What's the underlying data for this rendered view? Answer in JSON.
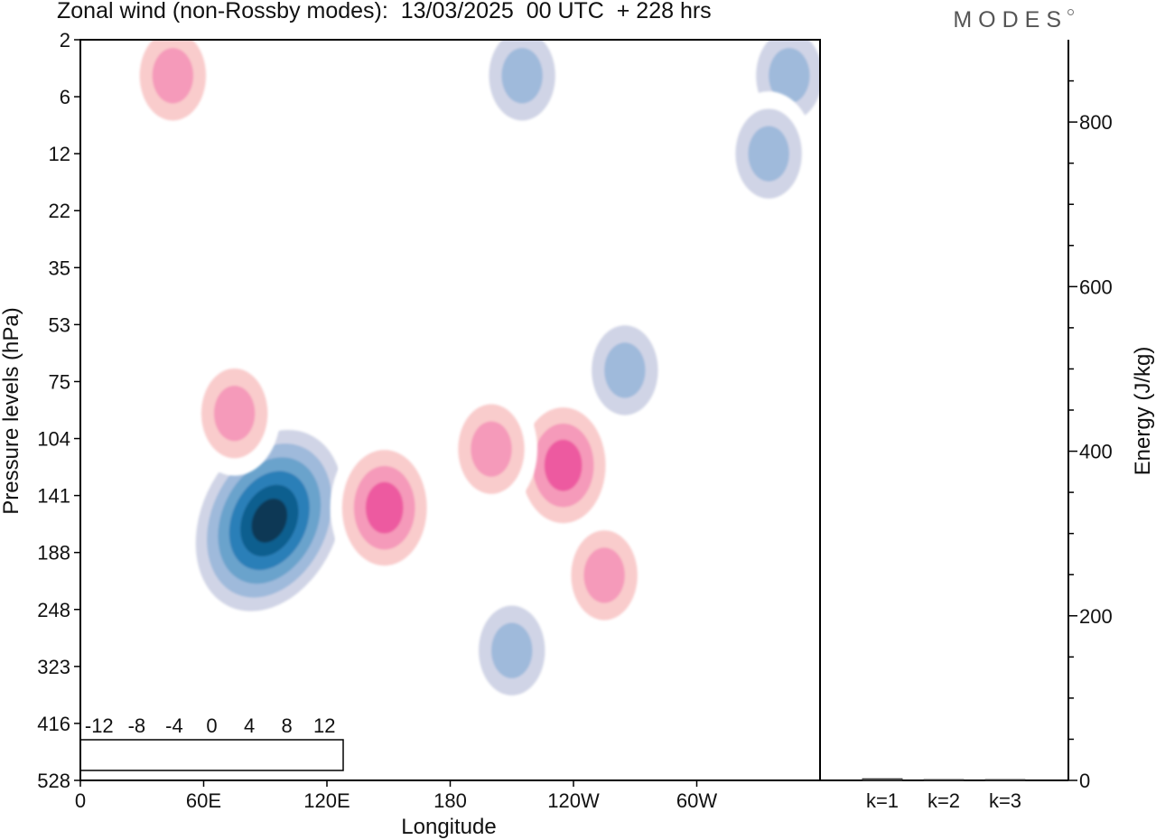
{
  "header": {
    "title": "Zonal wind (non-Rossby modes):  13/03/2025  00 UTC  + 228 hrs",
    "brand": "MODES"
  },
  "chart_data": [
    {
      "type": "heatmap",
      "xlabel": "Longitude",
      "ylabel": "Pressure levels (hPa)",
      "x_tick_labels": [
        "0",
        "60E",
        "120E",
        "180",
        "120W",
        "60W"
      ],
      "x_tick_degrees": [
        0,
        60,
        120,
        180,
        240,
        300
      ],
      "x_range_degrees": [
        0,
        360
      ],
      "y_tick_labels": [
        "2",
        "6",
        "12",
        "22",
        "35",
        "53",
        "75",
        "104",
        "141",
        "188",
        "248",
        "323",
        "416",
        "528"
      ],
      "colorbar": {
        "tick_labels": [
          "-12",
          "-8",
          "-4",
          "0",
          "4",
          "8",
          "12"
        ],
        "levels": [
          -14,
          -12,
          -10,
          -8,
          -6,
          -4,
          -2,
          0,
          2,
          4,
          6,
          8,
          10,
          12,
          14
        ],
        "colors": [
          "#0b3954",
          "#0b5f8f",
          "#2b7fb8",
          "#6ba3cc",
          "#9fbadb",
          "#d0d4e6",
          "#ffffff",
          "#ffffff",
          "#f9cccc",
          "#f59aba",
          "#ed5aa0",
          "#c81e8c",
          "#961284",
          "#5a0a6e"
        ]
      },
      "features": [
        {
          "lon": 92,
          "level": 160,
          "value": -14
        },
        {
          "lon": 148,
          "level": 150,
          "value": 7
        },
        {
          "lon": 210,
          "level": 300,
          "value": -6
        },
        {
          "lon": 235,
          "level": 120,
          "value": 8
        },
        {
          "lon": 200,
          "level": 110,
          "value": 6
        },
        {
          "lon": 265,
          "level": 70,
          "value": -6
        },
        {
          "lon": 45,
          "level": 4,
          "value": 6
        },
        {
          "lon": 215,
          "level": 4,
          "value": -5
        },
        {
          "lon": 345,
          "level": 4,
          "value": -6
        },
        {
          "lon": 335,
          "level": 12,
          "value": -5
        },
        {
          "lon": 75,
          "level": 90,
          "value": 6
        },
        {
          "lon": 255,
          "level": 210,
          "value": 6
        }
      ]
    },
    {
      "type": "bar",
      "categories": [
        "k=1",
        "k=2",
        "k=3"
      ],
      "values": [
        2,
        1,
        1
      ],
      "ylabel": "Energy (J/kg)",
      "ylim": [
        0,
        900
      ],
      "y_tick_values": [
        0,
        200,
        400,
        600,
        800
      ],
      "y_tick_labels": [
        "0",
        "200",
        "400",
        "600",
        "800"
      ]
    }
  ]
}
